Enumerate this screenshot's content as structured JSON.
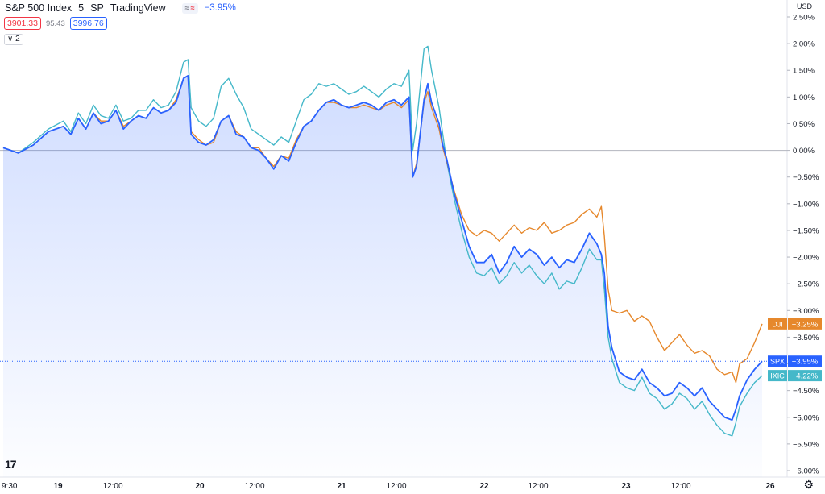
{
  "header": {
    "symbol": "S&P 500 Index",
    "interval": "5",
    "exchange": "SP",
    "source": "TradingView",
    "compare_chip_a": "≈",
    "compare_chip_b": "≈",
    "change": "−3.95%",
    "bid": "3901.33",
    "spread": "95.43",
    "ask": "3996.76",
    "indicators": "∨ 2"
  },
  "currency_label": "USD",
  "chart_data": {
    "type": "line",
    "y_axis": {
      "unit": "%",
      "ticks": [
        "2.50%",
        "2.00%",
        "1.50%",
        "1.00%",
        "0.50%",
        "0.00%",
        "−0.50%",
        "−1.00%",
        "−1.50%",
        "−2.00%",
        "−2.50%",
        "−3.00%",
        "−3.50%",
        "−4.00%",
        "−4.50%",
        "−5.00%",
        "−5.50%",
        "−6.00%"
      ],
      "range": [
        -6.0,
        2.5
      ]
    },
    "x_axis": {
      "ticks": [
        "9:30",
        "19",
        "12:00",
        "20",
        "12:00",
        "21",
        "12:00",
        "22",
        "12:00",
        "23",
        "12:00",
        "26"
      ],
      "bold_ticks": [
        "19",
        "20",
        "21",
        "22",
        "23",
        "26"
      ]
    },
    "grid": false,
    "series": [
      {
        "name": "SPX",
        "color": "#2962ff",
        "last_label": "−3.95%",
        "points": [
          [
            0,
            0.05
          ],
          [
            2,
            -0.05
          ],
          [
            4,
            0.1
          ],
          [
            6,
            0.35
          ],
          [
            8,
            0.45
          ],
          [
            9,
            0.3
          ],
          [
            10,
            0.6
          ],
          [
            11,
            0.4
          ],
          [
            12,
            0.7
          ],
          [
            13,
            0.5
          ],
          [
            14,
            0.55
          ],
          [
            15,
            0.75
          ],
          [
            16,
            0.4
          ],
          [
            17,
            0.55
          ],
          [
            18,
            0.65
          ],
          [
            19,
            0.6
          ],
          [
            20,
            0.8
          ],
          [
            21,
            0.7
          ],
          [
            22,
            0.75
          ],
          [
            23,
            0.9
          ],
          [
            24,
            1.35
          ],
          [
            24.6,
            1.4
          ],
          [
            25,
            0.3
          ],
          [
            26,
            0.15
          ],
          [
            27,
            0.1
          ],
          [
            28,
            0.2
          ],
          [
            29,
            0.55
          ],
          [
            30,
            0.65
          ],
          [
            31,
            0.3
          ],
          [
            32,
            0.25
          ],
          [
            33,
            0.05
          ],
          [
            34,
            0.0
          ],
          [
            35,
            -0.15
          ],
          [
            36,
            -0.35
          ],
          [
            37,
            -0.1
          ],
          [
            38,
            -0.2
          ],
          [
            39,
            0.15
          ],
          [
            40,
            0.45
          ],
          [
            41,
            0.55
          ],
          [
            42,
            0.75
          ],
          [
            43,
            0.9
          ],
          [
            44,
            0.95
          ],
          [
            45,
            0.85
          ],
          [
            46,
            0.8
          ],
          [
            47,
            0.85
          ],
          [
            48,
            0.9
          ],
          [
            49,
            0.85
          ],
          [
            50,
            0.75
          ],
          [
            51,
            0.9
          ],
          [
            52,
            0.95
          ],
          [
            53,
            0.85
          ],
          [
            54,
            1.0
          ],
          [
            54.5,
            -0.5
          ],
          [
            55,
            -0.3
          ],
          [
            56,
            0.95
          ],
          [
            56.5,
            1.25
          ],
          [
            57,
            0.9
          ],
          [
            58,
            0.5
          ],
          [
            58.5,
            0.1
          ],
          [
            59,
            -0.15
          ],
          [
            60,
            -0.8
          ],
          [
            61,
            -1.3
          ],
          [
            62,
            -1.8
          ],
          [
            63,
            -2.1
          ],
          [
            64,
            -2.1
          ],
          [
            65,
            -1.95
          ],
          [
            66,
            -2.3
          ],
          [
            67,
            -2.1
          ],
          [
            68,
            -1.8
          ],
          [
            69,
            -2.0
          ],
          [
            70,
            -1.85
          ],
          [
            71,
            -1.95
          ],
          [
            72,
            -2.15
          ],
          [
            73,
            -2.0
          ],
          [
            74,
            -2.2
          ],
          [
            75,
            -2.05
          ],
          [
            76,
            -2.1
          ],
          [
            77,
            -1.85
          ],
          [
            78,
            -1.55
          ],
          [
            79,
            -1.75
          ],
          [
            79.6,
            -1.95
          ],
          [
            80,
            -2.3
          ],
          [
            80.5,
            -3.3
          ],
          [
            81,
            -3.7
          ],
          [
            82,
            -4.15
          ],
          [
            83,
            -4.25
          ],
          [
            84,
            -4.3
          ],
          [
            85,
            -4.1
          ],
          [
            86,
            -4.35
          ],
          [
            87,
            -4.45
          ],
          [
            88,
            -4.6
          ],
          [
            89,
            -4.55
          ],
          [
            90,
            -4.35
          ],
          [
            91,
            -4.45
          ],
          [
            92,
            -4.6
          ],
          [
            93,
            -4.45
          ],
          [
            94,
            -4.7
          ],
          [
            95,
            -4.85
          ],
          [
            96,
            -5.0
          ],
          [
            97,
            -5.05
          ],
          [
            97.5,
            -4.85
          ],
          [
            98,
            -4.6
          ],
          [
            99,
            -4.3
          ],
          [
            100,
            -4.1
          ],
          [
            101,
            -3.95
          ]
        ]
      },
      {
        "name": "DJI",
        "color": "#e6882c",
        "last_label": "−3.25%",
        "points": [
          [
            0,
            0.05
          ],
          [
            2,
            -0.05
          ],
          [
            4,
            0.1
          ],
          [
            6,
            0.35
          ],
          [
            8,
            0.45
          ],
          [
            9,
            0.3
          ],
          [
            10,
            0.6
          ],
          [
            11,
            0.4
          ],
          [
            12,
            0.7
          ],
          [
            13,
            0.55
          ],
          [
            14,
            0.55
          ],
          [
            15,
            0.75
          ],
          [
            16,
            0.45
          ],
          [
            17,
            0.55
          ],
          [
            18,
            0.65
          ],
          [
            19,
            0.6
          ],
          [
            20,
            0.8
          ],
          [
            21,
            0.7
          ],
          [
            22,
            0.75
          ],
          [
            23,
            0.95
          ],
          [
            24,
            1.35
          ],
          [
            24.6,
            1.4
          ],
          [
            25,
            0.35
          ],
          [
            26,
            0.2
          ],
          [
            27,
            0.1
          ],
          [
            28,
            0.15
          ],
          [
            29,
            0.55
          ],
          [
            30,
            0.65
          ],
          [
            31,
            0.35
          ],
          [
            32,
            0.25
          ],
          [
            33,
            0.05
          ],
          [
            34,
            0.05
          ],
          [
            35,
            -0.15
          ],
          [
            36,
            -0.3
          ],
          [
            37,
            -0.1
          ],
          [
            38,
            -0.15
          ],
          [
            39,
            0.2
          ],
          [
            40,
            0.45
          ],
          [
            41,
            0.55
          ],
          [
            42,
            0.75
          ],
          [
            43,
            0.9
          ],
          [
            44,
            0.9
          ],
          [
            45,
            0.85
          ],
          [
            46,
            0.8
          ],
          [
            47,
            0.8
          ],
          [
            48,
            0.85
          ],
          [
            49,
            0.8
          ],
          [
            50,
            0.75
          ],
          [
            51,
            0.85
          ],
          [
            52,
            0.9
          ],
          [
            53,
            0.8
          ],
          [
            54,
            0.95
          ],
          [
            54.5,
            -0.5
          ],
          [
            55,
            -0.25
          ],
          [
            56,
            0.9
          ],
          [
            56.5,
            1.1
          ],
          [
            57,
            0.8
          ],
          [
            58,
            0.4
          ],
          [
            58.5,
            0.05
          ],
          [
            59,
            -0.2
          ],
          [
            60,
            -0.75
          ],
          [
            61,
            -1.2
          ],
          [
            62,
            -1.5
          ],
          [
            63,
            -1.6
          ],
          [
            64,
            -1.5
          ],
          [
            65,
            -1.55
          ],
          [
            66,
            -1.7
          ],
          [
            67,
            -1.55
          ],
          [
            68,
            -1.4
          ],
          [
            69,
            -1.55
          ],
          [
            70,
            -1.45
          ],
          [
            71,
            -1.5
          ],
          [
            72,
            -1.35
          ],
          [
            73,
            -1.55
          ],
          [
            74,
            -1.5
          ],
          [
            75,
            -1.4
          ],
          [
            76,
            -1.35
          ],
          [
            77,
            -1.2
          ],
          [
            78,
            -1.1
          ],
          [
            79,
            -1.25
          ],
          [
            79.6,
            -1.05
          ],
          [
            80,
            -1.6
          ],
          [
            80.5,
            -2.6
          ],
          [
            81,
            -3.0
          ],
          [
            82,
            -3.05
          ],
          [
            83,
            -3.0
          ],
          [
            84,
            -3.2
          ],
          [
            85,
            -3.1
          ],
          [
            86,
            -3.2
          ],
          [
            87,
            -3.5
          ],
          [
            88,
            -3.75
          ],
          [
            89,
            -3.6
          ],
          [
            90,
            -3.45
          ],
          [
            91,
            -3.65
          ],
          [
            92,
            -3.8
          ],
          [
            93,
            -3.75
          ],
          [
            94,
            -3.85
          ],
          [
            95,
            -4.1
          ],
          [
            96,
            -4.2
          ],
          [
            97,
            -4.15
          ],
          [
            97.5,
            -4.35
          ],
          [
            98,
            -4.0
          ],
          [
            99,
            -3.9
          ],
          [
            100,
            -3.6
          ],
          [
            101,
            -3.25
          ]
        ]
      },
      {
        "name": "IXIC",
        "color": "#45b8c9",
        "last_label": "−4.22%",
        "points": [
          [
            0,
            0.05
          ],
          [
            2,
            -0.05
          ],
          [
            4,
            0.15
          ],
          [
            6,
            0.4
          ],
          [
            8,
            0.55
          ],
          [
            9,
            0.35
          ],
          [
            10,
            0.7
          ],
          [
            11,
            0.5
          ],
          [
            12,
            0.85
          ],
          [
            13,
            0.65
          ],
          [
            14,
            0.6
          ],
          [
            15,
            0.85
          ],
          [
            16,
            0.55
          ],
          [
            17,
            0.6
          ],
          [
            18,
            0.75
          ],
          [
            19,
            0.75
          ],
          [
            20,
            0.95
          ],
          [
            21,
            0.8
          ],
          [
            22,
            0.85
          ],
          [
            23,
            1.1
          ],
          [
            24,
            1.65
          ],
          [
            24.6,
            1.7
          ],
          [
            25,
            0.8
          ],
          [
            26,
            0.55
          ],
          [
            27,
            0.45
          ],
          [
            28,
            0.6
          ],
          [
            29,
            1.2
          ],
          [
            30,
            1.35
          ],
          [
            31,
            1.05
          ],
          [
            32,
            0.8
          ],
          [
            33,
            0.4
          ],
          [
            34,
            0.3
          ],
          [
            35,
            0.2
          ],
          [
            36,
            0.1
          ],
          [
            37,
            0.25
          ],
          [
            38,
            0.15
          ],
          [
            39,
            0.55
          ],
          [
            40,
            0.95
          ],
          [
            41,
            1.05
          ],
          [
            42,
            1.25
          ],
          [
            43,
            1.2
          ],
          [
            44,
            1.25
          ],
          [
            45,
            1.15
          ],
          [
            46,
            1.05
          ],
          [
            47,
            1.1
          ],
          [
            48,
            1.2
          ],
          [
            49,
            1.1
          ],
          [
            50,
            1.0
          ],
          [
            51,
            1.15
          ],
          [
            52,
            1.25
          ],
          [
            53,
            1.2
          ],
          [
            54,
            1.5
          ],
          [
            54.5,
            0.0
          ],
          [
            55,
            0.5
          ],
          [
            56,
            1.9
          ],
          [
            56.5,
            1.95
          ],
          [
            57,
            1.5
          ],
          [
            58,
            0.8
          ],
          [
            58.5,
            0.3
          ],
          [
            59,
            -0.2
          ],
          [
            60,
            -0.9
          ],
          [
            61,
            -1.5
          ],
          [
            62,
            -2.0
          ],
          [
            63,
            -2.3
          ],
          [
            64,
            -2.35
          ],
          [
            65,
            -2.2
          ],
          [
            66,
            -2.5
          ],
          [
            67,
            -2.35
          ],
          [
            68,
            -2.1
          ],
          [
            69,
            -2.3
          ],
          [
            70,
            -2.15
          ],
          [
            71,
            -2.35
          ],
          [
            72,
            -2.5
          ],
          [
            73,
            -2.3
          ],
          [
            74,
            -2.6
          ],
          [
            75,
            -2.45
          ],
          [
            76,
            -2.5
          ],
          [
            77,
            -2.2
          ],
          [
            78,
            -1.85
          ],
          [
            79,
            -2.05
          ],
          [
            79.6,
            -2.05
          ],
          [
            80,
            -2.6
          ],
          [
            80.5,
            -3.5
          ],
          [
            81,
            -3.9
          ],
          [
            82,
            -4.35
          ],
          [
            83,
            -4.45
          ],
          [
            84,
            -4.5
          ],
          [
            85,
            -4.25
          ],
          [
            86,
            -4.55
          ],
          [
            87,
            -4.65
          ],
          [
            88,
            -4.85
          ],
          [
            89,
            -4.75
          ],
          [
            90,
            -4.55
          ],
          [
            91,
            -4.65
          ],
          [
            92,
            -4.85
          ],
          [
            93,
            -4.7
          ],
          [
            94,
            -4.95
          ],
          [
            95,
            -5.15
          ],
          [
            96,
            -5.3
          ],
          [
            97,
            -5.35
          ],
          [
            97.5,
            -5.1
          ],
          [
            98,
            -4.8
          ],
          [
            99,
            -4.55
          ],
          [
            100,
            -4.35
          ],
          [
            101,
            -4.22
          ]
        ]
      }
    ]
  }
}
